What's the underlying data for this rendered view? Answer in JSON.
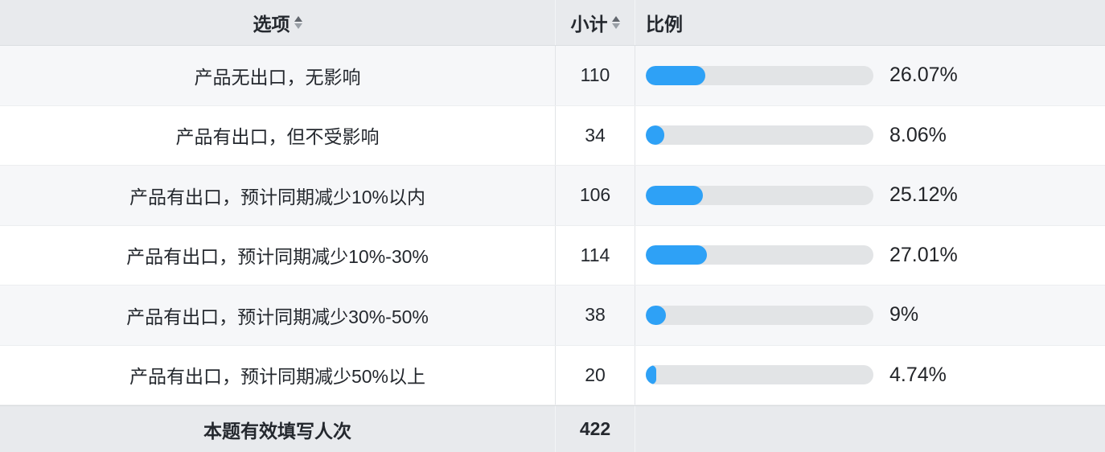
{
  "header": {
    "columns": [
      {
        "label": "选项",
        "sortable": true
      },
      {
        "label": "小计",
        "sortable": true
      },
      {
        "label": "比例",
        "sortable": false
      }
    ]
  },
  "chart_data": {
    "type": "bar",
    "orientation": "horizontal",
    "columns": [
      "选项",
      "小计",
      "比例"
    ],
    "categories": [
      "产品无出口，无影响",
      "产品有出口，但不受影响",
      "产品有出口，预计同期减少10%以内",
      "产品有出口，预计同期减少10%-30%",
      "产品有出口，预计同期减少30%-50%",
      "产品有出口，预计同期减少50%以上"
    ],
    "counts": [
      "110",
      "34",
      "106",
      "114",
      "38",
      "20"
    ],
    "percents": [
      26.07,
      8.06,
      25.12,
      27.01,
      9,
      4.74
    ],
    "percent_labels": [
      "26.07%",
      "8.06%",
      "25.12%",
      "27.01%",
      "9%",
      "4.74%"
    ],
    "xlim": [
      0,
      100
    ],
    "legend": "none",
    "grid": "off"
  },
  "footer": {
    "label": "本题有效填写人次",
    "total": "422"
  },
  "colors": {
    "bar_fill": "#2ea1f6",
    "bar_track": "#e2e4e6",
    "header_bg": "#e8eaed",
    "row_alt_bg": "#f6f7f9",
    "text": "#24282e"
  },
  "icons": {
    "sort": "sort-arrows"
  }
}
